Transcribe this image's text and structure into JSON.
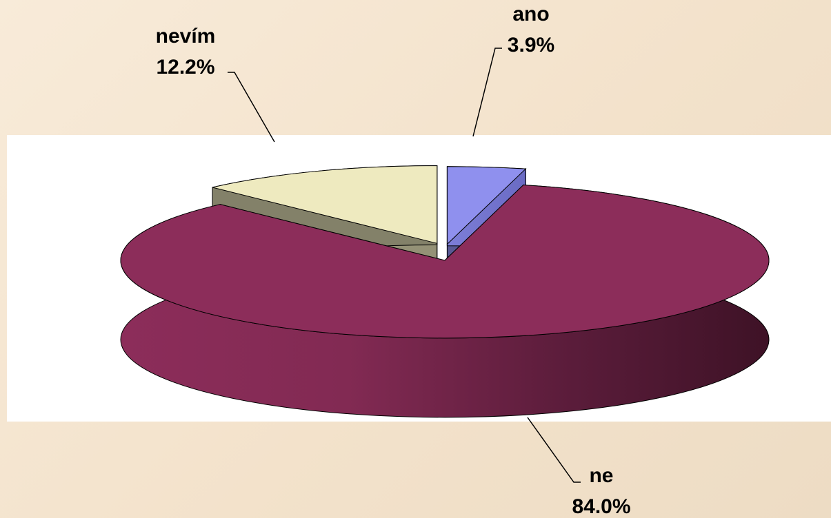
{
  "chart_data": {
    "type": "pie",
    "style": "3d-exploded",
    "slices": [
      {
        "label": "ano",
        "value": 3.9,
        "value_label": "3.9%",
        "color": "#8f90ee",
        "exploded": true
      },
      {
        "label": "ne",
        "value": 84.0,
        "value_label": "84.0%",
        "color": "#8c2d5a",
        "exploded": false
      },
      {
        "label": "nevím",
        "value": 12.2,
        "value_label": "12.2%",
        "color": "#eeeabf",
        "exploded": true
      }
    ],
    "legend": "none",
    "colors": {
      "page_background": "#f3e2cb",
      "plot_area": "#ffffff"
    }
  }
}
